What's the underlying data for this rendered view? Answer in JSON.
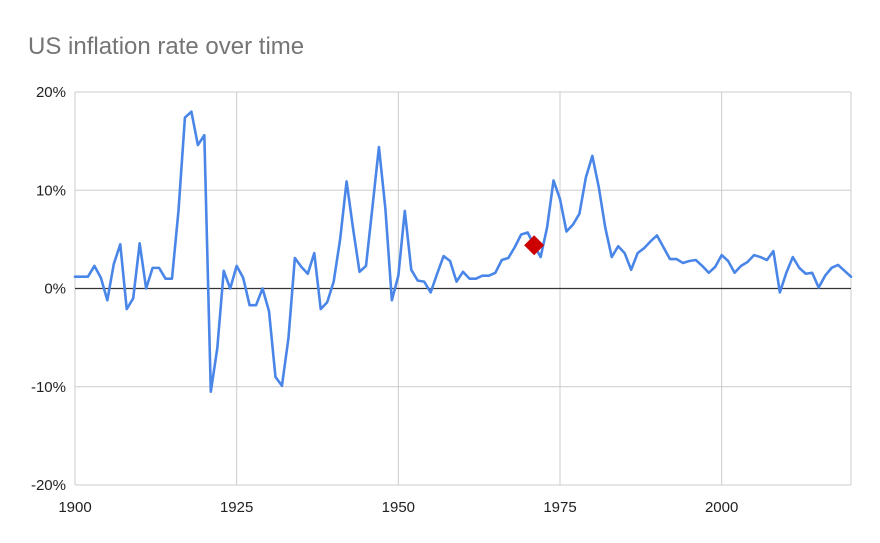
{
  "chart_data": {
    "type": "line",
    "title": "US inflation rate over time",
    "xlabel": "",
    "ylabel": "",
    "xlim": [
      1900,
      2020
    ],
    "ylim": [
      -20,
      20
    ],
    "x_ticks": [
      1900,
      1925,
      1950,
      1975,
      2000
    ],
    "y_ticks": [
      {
        "value": 20,
        "label": "20%"
      },
      {
        "value": 10,
        "label": "10%"
      },
      {
        "value": 0,
        "label": "0%"
      },
      {
        "value": -10,
        "label": "-10%"
      },
      {
        "value": -20,
        "label": "-20%"
      }
    ],
    "grid": true,
    "legend": "none",
    "series": [
      {
        "color": "#4a86e8",
        "x": [
          1900,
          1901,
          1902,
          1903,
          1904,
          1905,
          1906,
          1907,
          1908,
          1909,
          1910,
          1911,
          1912,
          1913,
          1914,
          1915,
          1916,
          1917,
          1918,
          1919,
          1920,
          1921,
          1922,
          1923,
          1924,
          1925,
          1926,
          1927,
          1928,
          1929,
          1930,
          1931,
          1932,
          1933,
          1934,
          1935,
          1936,
          1937,
          1938,
          1939,
          1940,
          1941,
          1942,
          1943,
          1944,
          1945,
          1946,
          1947,
          1948,
          1949,
          1950,
          1951,
          1952,
          1953,
          1954,
          1955,
          1956,
          1957,
          1958,
          1959,
          1960,
          1961,
          1962,
          1963,
          1964,
          1965,
          1966,
          1967,
          1968,
          1969,
          1970,
          1971,
          1972,
          1973,
          1974,
          1975,
          1976,
          1977,
          1978,
          1979,
          1980,
          1981,
          1982,
          1983,
          1984,
          1985,
          1986,
          1987,
          1988,
          1989,
          1990,
          1991,
          1992,
          1993,
          1994,
          1995,
          1996,
          1997,
          1998,
          1999,
          2000,
          2001,
          2002,
          2003,
          2004,
          2005,
          2006,
          2007,
          2008,
          2009,
          2010,
          2011,
          2012,
          2013,
          2014,
          2015,
          2016,
          2017,
          2018,
          2019,
          2020
        ],
        "values": [
          1.2,
          1.2,
          1.2,
          2.3,
          1.1,
          -1.2,
          2.5,
          4.5,
          -2.1,
          -1.0,
          4.6,
          0.0,
          2.1,
          2.1,
          1.0,
          1.0,
          7.9,
          17.4,
          18.0,
          14.6,
          15.6,
          -10.5,
          -6.1,
          1.8,
          0.0,
          2.3,
          1.1,
          -1.7,
          -1.7,
          0.0,
          -2.3,
          -9.0,
          -9.9,
          -5.1,
          3.1,
          2.2,
          1.5,
          3.6,
          -2.1,
          -1.4,
          0.7,
          5.0,
          10.9,
          6.1,
          1.7,
          2.3,
          8.3,
          14.4,
          8.1,
          -1.2,
          1.3,
          7.9,
          1.9,
          0.8,
          0.7,
          -0.4,
          1.5,
          3.3,
          2.8,
          0.7,
          1.7,
          1.0,
          1.0,
          1.3,
          1.3,
          1.6,
          2.9,
          3.1,
          4.2,
          5.5,
          5.7,
          4.4,
          3.2,
          6.2,
          11.0,
          9.1,
          5.8,
          6.5,
          7.6,
          11.3,
          13.5,
          10.3,
          6.2,
          3.2,
          4.3,
          3.6,
          1.9,
          3.6,
          4.1,
          4.8,
          5.4,
          4.2,
          3.0,
          3.0,
          2.6,
          2.8,
          2.9,
          2.3,
          1.6,
          2.2,
          3.4,
          2.8,
          1.6,
          2.3,
          2.7,
          3.4,
          3.2,
          2.9,
          3.8,
          -0.4,
          1.6,
          3.2,
          2.1,
          1.5,
          1.6,
          0.1,
          1.3,
          2.1,
          2.4,
          1.8,
          1.2
        ]
      }
    ],
    "highlight": {
      "x": 1971,
      "value": 4.4,
      "color": "#cc0000",
      "shape": "diamond"
    }
  }
}
